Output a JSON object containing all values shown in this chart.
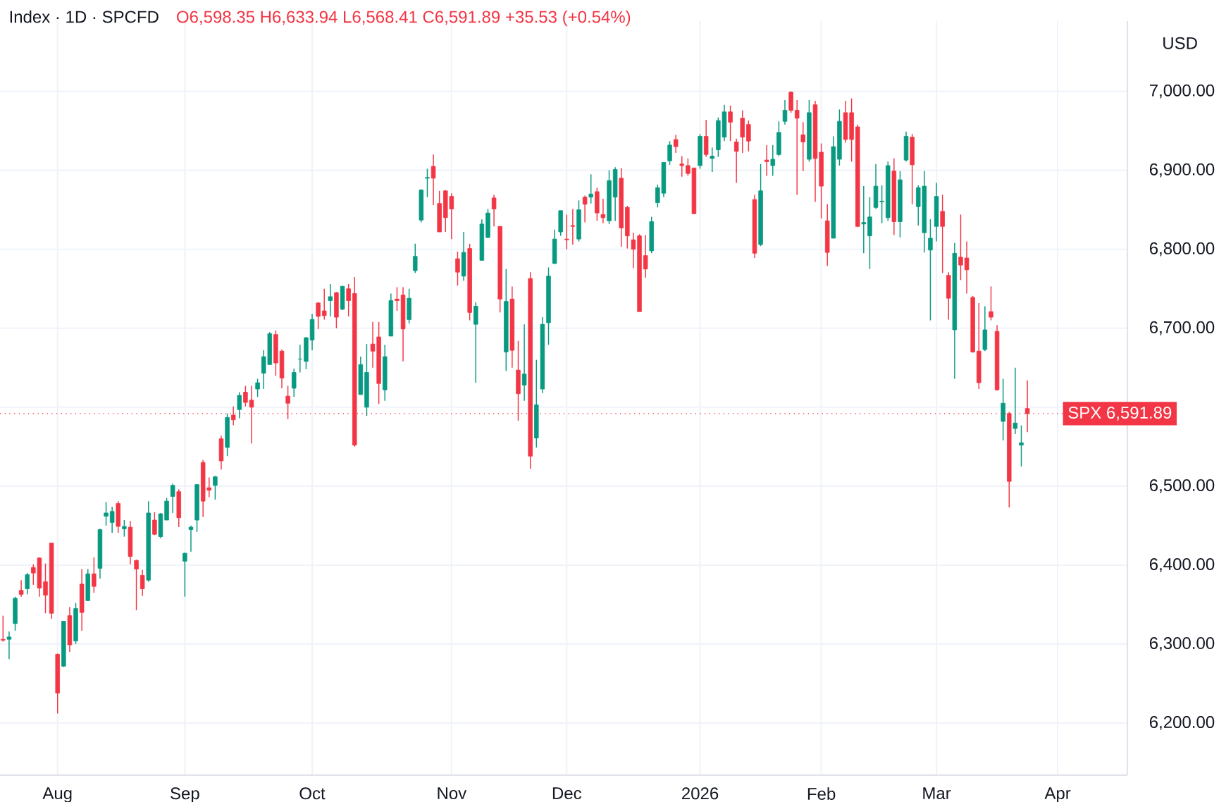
{
  "chart_data": {
    "type": "candlestick",
    "title": "Index · 1D · SPCFD",
    "subtitle": "O6,598.35 H6,633.94 L6,568.41 C6,591.89 +35.53 (+0.54%)",
    "ylabel": "USD",
    "categories": [
      null,
      null,
      null,
      null,
      null,
      null,
      null,
      null,
      null,
      "Aug",
      null,
      null,
      null,
      null,
      null,
      null,
      null,
      null,
      null,
      null,
      null,
      null,
      null,
      null,
      null,
      null,
      null,
      null,
      null,
      null,
      "Sep",
      null,
      null,
      null,
      null,
      null,
      null,
      null,
      null,
      null,
      null,
      null,
      null,
      null,
      null,
      null,
      null,
      null,
      null,
      null,
      null,
      "Oct",
      null,
      null,
      null,
      null,
      null,
      null,
      null,
      null,
      null,
      null,
      null,
      null,
      null,
      null,
      null,
      null,
      null,
      null,
      null,
      null,
      null,
      null,
      "Nov",
      null,
      null,
      null,
      null,
      null,
      null,
      null,
      null,
      null,
      null,
      null,
      null,
      null,
      null,
      null,
      null,
      null,
      null,
      "Dec",
      null,
      null,
      null,
      null,
      null,
      null,
      null,
      null,
      null,
      null,
      null,
      null,
      null,
      null,
      null,
      null,
      null,
      null,
      null,
      null,
      null,
      "2026",
      null,
      null,
      null,
      null,
      null,
      null,
      null,
      null,
      null,
      null,
      null,
      null,
      null,
      null,
      null,
      null,
      null,
      null,
      null,
      "Feb",
      null,
      null,
      null,
      null,
      null,
      null,
      null,
      null,
      null,
      null,
      null,
      null,
      null,
      null,
      null,
      null,
      null,
      null,
      "Mar",
      null,
      null,
      null,
      null,
      null,
      null,
      null,
      null,
      null,
      null,
      null,
      null,
      null,
      null,
      null,
      null,
      null,
      null,
      null,
      "Apr",
      null,
      null,
      null,
      null,
      null,
      null,
      null,
      null,
      null,
      null,
      null
    ],
    "ohlc": [
      [
        6306,
        6336,
        6303,
        6305
      ],
      [
        6306,
        6316,
        6281,
        6309
      ],
      [
        6326,
        6360,
        6317,
        6358
      ],
      [
        6368,
        6381,
        6360,
        6363
      ],
      [
        6370,
        6390,
        6363,
        6388
      ],
      [
        6397,
        6401,
        6375,
        6390
      ],
      [
        6409,
        6410,
        6360,
        6371
      ],
      [
        6379,
        6402,
        6339,
        6362
      ],
      [
        6428,
        6428,
        6332,
        6339
      ],
      [
        6287,
        6288,
        6212,
        6238
      ],
      [
        6272,
        6329,
        6271,
        6329
      ],
      [
        6336,
        6347,
        6290,
        6299
      ],
      [
        6304,
        6352,
        6300,
        6345
      ],
      [
        6376,
        6395,
        6317,
        6340
      ],
      [
        6355,
        6395,
        6355,
        6389
      ],
      [
        6389,
        6410,
        6365,
        6373
      ],
      [
        6396,
        6446,
        6383,
        6445
      ],
      [
        6462,
        6480,
        6450,
        6466
      ],
      [
        6454,
        6474,
        6441,
        6468
      ],
      [
        6478,
        6481,
        6441,
        6449
      ],
      [
        6446,
        6457,
        6436,
        6449
      ],
      [
        6448,
        6456,
        6401,
        6411
      ],
      [
        6406,
        6407,
        6343,
        6395
      ],
      [
        6387,
        6394,
        6361,
        6370
      ],
      [
        6381,
        6481,
        6379,
        6466
      ],
      [
        6457,
        6467,
        6438,
        6439
      ],
      [
        6436,
        6466,
        6434,
        6465
      ],
      [
        6457,
        6485,
        6457,
        6481
      ],
      [
        6487,
        6503,
        6466,
        6501
      ],
      [
        6493,
        6496,
        6448,
        6460
      ],
      [
        6405,
        6416,
        6360,
        6415
      ],
      [
        6445,
        6450,
        6417,
        6448
      ],
      [
        6457,
        6502,
        6442,
        6502
      ],
      [
        6530,
        6533,
        6461,
        6481
      ],
      [
        6498,
        6511,
        6486,
        6495
      ],
      [
        6501,
        6513,
        6483,
        6512
      ],
      [
        6560,
        6564,
        6521,
        6532
      ],
      [
        6549,
        6592,
        6538,
        6587
      ],
      [
        6590,
        6601,
        6577,
        6584
      ],
      [
        6597,
        6619,
        6586,
        6615
      ],
      [
        6619,
        6627,
        6601,
        6606
      ],
      [
        6609,
        6627,
        6554,
        6600
      ],
      [
        6623,
        6636,
        6613,
        6631
      ],
      [
        6643,
        6672,
        6623,
        6664
      ],
      [
        6654,
        6695,
        6654,
        6693
      ],
      [
        6692,
        6697,
        6640,
        6656
      ],
      [
        6671,
        6673,
        6624,
        6637
      ],
      [
        6614,
        6627,
        6585,
        6605
      ],
      [
        6624,
        6649,
        6613,
        6644
      ],
      [
        6661,
        6679,
        6644,
        6661
      ],
      [
        6658,
        6689,
        6648,
        6688
      ],
      [
        6685,
        6718,
        6672,
        6711
      ],
      [
        6732,
        6733,
        6699,
        6715
      ],
      [
        6722,
        6750,
        6711,
        6716
      ],
      [
        6735,
        6756,
        6715,
        6740
      ],
      [
        6745,
        6746,
        6700,
        6714
      ],
      [
        6724,
        6754,
        6723,
        6753
      ],
      [
        6750,
        6756,
        6715,
        6735
      ],
      [
        6744,
        6765,
        6550,
        6552
      ],
      [
        6616,
        6664,
        6616,
        6654
      ],
      [
        6600,
        6680,
        6589,
        6644
      ],
      [
        6680,
        6708,
        6650,
        6671
      ],
      [
        6689,
        6708,
        6604,
        6630
      ],
      [
        6622,
        6679,
        6608,
        6664
      ],
      [
        6690,
        6744,
        6690,
        6735
      ],
      [
        6737,
        6752,
        6722,
        6735
      ],
      [
        6742,
        6752,
        6658,
        6699
      ],
      [
        6711,
        6750,
        6706,
        6738
      ],
      [
        6773,
        6807,
        6770,
        6791
      ],
      [
        6837,
        6876,
        6834,
        6875
      ],
      [
        6890,
        6902,
        6866,
        6891
      ],
      [
        6905,
        6920,
        6856,
        6890
      ],
      [
        6858,
        6874,
        6822,
        6822
      ],
      [
        6874,
        6875,
        6822,
        6840
      ],
      [
        6867,
        6871,
        6813,
        6851
      ],
      [
        6788,
        6797,
        6754,
        6771
      ],
      [
        6766,
        6822,
        6760,
        6796
      ],
      [
        6801,
        6807,
        6710,
        6720
      ],
      [
        6705,
        6733,
        6631,
        6728
      ],
      [
        6786,
        6838,
        6786,
        6832
      ],
      [
        6815,
        6851,
        6814,
        6846
      ],
      [
        6865,
        6869,
        6829,
        6851
      ],
      [
        6829,
        6829,
        6720,
        6737
      ],
      [
        6670,
        6775,
        6646,
        6734
      ],
      [
        6737,
        6753,
        6650,
        6672
      ],
      [
        6647,
        6684,
        6583,
        6617
      ],
      [
        6628,
        6705,
        6608,
        6642
      ],
      [
        6763,
        6771,
        6522,
        6538
      ],
      [
        6561,
        6660,
        6549,
        6603
      ],
      [
        6623,
        6714,
        6618,
        6705
      ],
      [
        6707,
        6777,
        6679,
        6766
      ],
      [
        6782,
        6825,
        6781,
        6813
      ],
      [
        6822,
        6849,
        6817,
        6849
      ],
      [
        6813,
        6844,
        6800,
        6812
      ],
      [
        6830,
        6851,
        6806,
        6829
      ],
      [
        6813,
        6862,
        6810,
        6850
      ],
      [
        6866,
        6868,
        6834,
        6857
      ],
      [
        6866,
        6895,
        6858,
        6870
      ],
      [
        6873,
        6878,
        6836,
        6846
      ],
      [
        6844,
        6864,
        6833,
        6840
      ],
      [
        6836,
        6900,
        6832,
        6887
      ],
      [
        6866,
        6904,
        6836,
        6901
      ],
      [
        6890,
        6903,
        6803,
        6827
      ],
      [
        6853,
        6855,
        6801,
        6817
      ],
      [
        6812,
        6821,
        6776,
        6800
      ],
      [
        6817,
        6819,
        6721,
        6721
      ],
      [
        6792,
        6818,
        6764,
        6775
      ],
      [
        6798,
        6841,
        6795,
        6835
      ],
      [
        6859,
        6882,
        6853,
        6878
      ],
      [
        6871,
        6910,
        6866,
        6910
      ],
      [
        6912,
        6937,
        6907,
        6932
      ],
      [
        6939,
        6945,
        6922,
        6930
      ],
      [
        6908,
        6918,
        6892,
        6906
      ],
      [
        6906,
        6915,
        6893,
        6896
      ],
      [
        6903,
        6903,
        6845,
        6845
      ],
      [
        6906,
        6946,
        6902,
        6943
      ],
      [
        6943,
        6964,
        6917,
        6920
      ],
      [
        6915,
        6929,
        6898,
        6918
      ],
      [
        6926,
        6967,
        6917,
        6963
      ],
      [
        6942,
        6983,
        6937,
        6974
      ],
      [
        6974,
        6982,
        6937,
        6961
      ],
      [
        6936,
        6940,
        6884,
        6924
      ],
      [
        6966,
        6976,
        6922,
        6942
      ],
      [
        6958,
        6963,
        6924,
        6937
      ],
      [
        6863,
        6869,
        6789,
        6795
      ],
      [
        6806,
        6908,
        6804,
        6874
      ],
      [
        6913,
        6932,
        6893,
        6911
      ],
      [
        6906,
        6932,
        6893,
        6914
      ],
      [
        6920,
        6962,
        6918,
        6948
      ],
      [
        6962,
        6989,
        6958,
        6976
      ],
      [
        6999,
        7000,
        6973,
        6976
      ],
      [
        6976,
        6989,
        6869,
        6966
      ],
      [
        6945,
        6961,
        6899,
        6936
      ],
      [
        6914,
        6989,
        6911,
        6973
      ],
      [
        6983,
        6988,
        6860,
        6915
      ],
      [
        6923,
        6934,
        6839,
        6880
      ],
      [
        6836,
        6857,
        6779,
        6796
      ],
      [
        6814,
        6943,
        6814,
        6930
      ],
      [
        6914,
        6977,
        6906,
        6962
      ],
      [
        6973,
        6988,
        6935,
        6939
      ],
      [
        6973,
        6991,
        6911,
        6939
      ],
      [
        6955,
        6958,
        6828,
        6829
      ],
      [
        6832,
        6880,
        6795,
        6834
      ],
      [
        6817,
        6866,
        6775,
        6841
      ],
      [
        6853,
        6908,
        6851,
        6880
      ],
      [
        6860,
        6881,
        6833,
        6861
      ],
      [
        6840,
        6911,
        6836,
        6906
      ],
      [
        6899,
        6915,
        6818,
        6835
      ],
      [
        6835,
        6899,
        6815,
        6888
      ],
      [
        6913,
        6949,
        6911,
        6943
      ],
      [
        6942,
        6946,
        6857,
        6907
      ],
      [
        6854,
        6881,
        6830,
        6878
      ],
      [
        6821,
        6899,
        6796,
        6880
      ],
      [
        6799,
        6838,
        6710,
        6814
      ],
      [
        6829,
        6884,
        6810,
        6867
      ],
      [
        6848,
        6869,
        6770,
        6829
      ],
      [
        6767,
        6771,
        6711,
        6738
      ],
      [
        6698,
        6808,
        6636,
        6795
      ],
      [
        6790,
        6844,
        6761,
        6780
      ],
      [
        6789,
        6810,
        6744,
        6774
      ],
      [
        6739,
        6741,
        6669,
        6670
      ],
      [
        6671,
        6732,
        6623,
        6631
      ],
      [
        6673,
        6728,
        6671,
        6698
      ],
      [
        6721,
        6753,
        6710,
        6714
      ],
      [
        6696,
        6704,
        6621,
        6622
      ],
      [
        6582,
        6636,
        6558,
        6605
      ],
      [
        6592,
        6594,
        6473,
        6506
      ],
      [
        6573,
        6650,
        6566,
        6580
      ],
      [
        6552,
        6577,
        6525,
        6555
      ],
      [
        6598.35,
        6633.94,
        6568.41,
        6591.89
      ],
      null,
      null,
      null,
      null,
      null,
      null,
      null,
      null,
      null,
      null,
      null,
      null,
      null,
      null,
      null,
      null
    ],
    "colors": [
      "#f23645",
      "#089981",
      "#089981",
      "#f23645",
      "#089981",
      "#f23645",
      "#f23645",
      "#f23645",
      "#f23645",
      "#f23645",
      "#089981",
      "#f23645",
      "#089981",
      "#f23645",
      "#089981",
      "#f23645",
      "#089981",
      "#089981",
      "#089981",
      "#f23645",
      "#089981",
      "#f23645",
      "#f23645",
      "#f23645",
      "#089981",
      "#f23645",
      "#089981",
      "#089981",
      "#089981",
      "#f23645",
      "#089981",
      "#089981",
      "#089981",
      "#f23645",
      "#f23645",
      "#089981",
      "#f23645",
      "#089981",
      "#f23645",
      "#089981",
      "#f23645",
      "#f23645",
      "#089981",
      "#089981",
      "#089981",
      "#f23645",
      "#f23645",
      "#f23645",
      "#089981",
      "#089981",
      "#089981",
      "#089981",
      "#f23645",
      "#f23645",
      "#089981",
      "#f23645",
      "#089981",
      "#f23645",
      "#f23645",
      "#089981",
      "#089981",
      "#f23645",
      "#f23645",
      "#089981",
      "#089981",
      "#f23645",
      "#f23645",
      "#089981",
      "#089981",
      "#089981",
      "#089981",
      "#f23645",
      "#f23645",
      "#f23645",
      "#f23645",
      "#f23645",
      "#089981",
      "#f23645",
      "#089981",
      "#089981",
      "#089981",
      "#f23645",
      "#f23645",
      "#089981",
      "#f23645",
      "#f23645",
      "#089981",
      "#f23645",
      "#089981",
      "#089981",
      "#089981",
      "#089981",
      "#089981",
      "#f23645",
      "#f23645",
      "#089981",
      "#f23645",
      "#089981",
      "#f23645",
      "#f23645",
      "#089981",
      "#089981",
      "#f23645",
      "#f23645",
      "#f23645",
      "#f23645",
      "#f23645",
      "#089981",
      "#089981",
      "#089981",
      "#089981",
      "#f23645",
      "#f23645",
      "#f23645",
      "#f23645",
      "#089981",
      "#f23645",
      "#089981",
      "#089981",
      "#089981",
      "#f23645",
      "#f23645",
      "#f23645",
      "#f23645",
      "#f23645",
      "#089981",
      "#f23645",
      "#089981",
      "#089981",
      "#089981",
      "#f23645",
      "#f23645",
      "#f23645",
      "#089981",
      "#f23645",
      "#f23645",
      "#f23645",
      "#089981",
      "#089981",
      "#f23645",
      "#f23645",
      "#f23645",
      "#089981",
      "#089981",
      "#089981",
      "#089981",
      "#089981",
      "#f23645",
      "#089981",
      "#089981",
      "#f23645",
      "#089981",
      "#089981",
      "#089981",
      "#089981",
      "#f23645",
      "#f23645",
      "#089981",
      "#f23645",
      "#f23645",
      "#f23645",
      "#f23645",
      "#089981",
      "#f23645",
      "#f23645",
      "#089981",
      "#f23645",
      "#089981",
      "#089981",
      "#f23645",
      null,
      null,
      null,
      null,
      null,
      null,
      null,
      null,
      null,
      null,
      null,
      null,
      null,
      null,
      null,
      null
    ],
    "ylim": [
      6134,
      7089
    ],
    "yticks": [
      {
        "value": 6200,
        "label": "6,200.00"
      },
      {
        "value": 6300,
        "label": "6,300.00"
      },
      {
        "value": 6400,
        "label": "6,400.00"
      },
      {
        "value": 6500,
        "label": "6,500.00"
      },
      {
        "value": 6600,
        "label": null
      },
      {
        "value": 6700,
        "label": "6,700.00"
      },
      {
        "value": 6800,
        "label": "6,800.00"
      },
      {
        "value": 6900,
        "label": "6,900.00"
      },
      {
        "value": 7000,
        "label": "7,000.00"
      }
    ],
    "grid": true,
    "ref_lines": [
      {
        "axis": "y",
        "value": 6591.89,
        "label": "SPX 6,591.89",
        "color": "#f23645",
        "line_style": "dotted"
      }
    ]
  }
}
